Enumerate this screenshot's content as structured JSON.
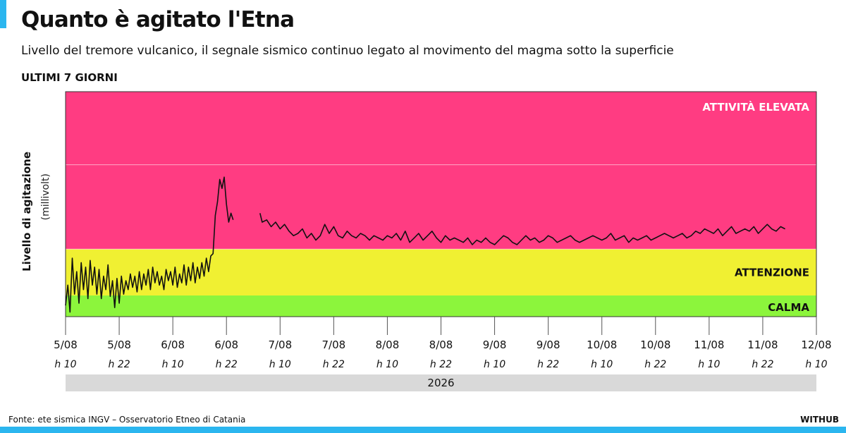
{
  "title": "Quanto è agitato l'Etna",
  "subtitle": "Livello del tremore vulcanico, il segnale sismico continuo legato al movimento del magma sotto la superficie",
  "period_label": "ULTIMI 7 GIORNI",
  "source": "Fonte: ete sismica INGV – Osservatorio Etneo di Catania",
  "brand": "WITHUB",
  "chart_data": {
    "type": "line",
    "title": "Quanto è agitato l'Etna",
    "ylabel": "Livello di agitazione",
    "yunit": "(millivolt)",
    "xlabel": "2026",
    "year": "2026",
    "x_ticks": [
      {
        "date": "5/08",
        "hour": "h 10"
      },
      {
        "date": "5/08",
        "hour": "h 22"
      },
      {
        "date": "6/08",
        "hour": "h 10"
      },
      {
        "date": "6/08",
        "hour": "h 22"
      },
      {
        "date": "7/08",
        "hour": "h 10"
      },
      {
        "date": "7/08",
        "hour": "h 22"
      },
      {
        "date": "8/08",
        "hour": "h 10"
      },
      {
        "date": "8/08",
        "hour": "h 22"
      },
      {
        "date": "9/08",
        "hour": "h 10"
      },
      {
        "date": "9/08",
        "hour": "h 22"
      },
      {
        "date": "10/08",
        "hour": "h 10"
      },
      {
        "date": "10/08",
        "hour": "h 22"
      },
      {
        "date": "11/08",
        "hour": "h 10"
      },
      {
        "date": "11/08",
        "hour": "h 22"
      },
      {
        "date": "12/08",
        "hour": "h 10"
      }
    ],
    "x_range_hours": [
      0,
      168
    ],
    "y_range": [
      0,
      100
    ],
    "zones": [
      {
        "name": "CALMA",
        "from": 0,
        "to": 9.4,
        "color": "#8cf53c"
      },
      {
        "name": "ATTENZIONE",
        "from": 9.4,
        "to": 30,
        "color": "#f0f032"
      },
      {
        "name": "ATTIVITÀ ELEVATA",
        "from": 30,
        "to": 100,
        "color": "#ff3c82"
      }
    ],
    "gridlines": [
      30,
      67.5
    ],
    "line_color": "#111111",
    "series": [
      {
        "segment": 1,
        "points": [
          [
            0,
            5
          ],
          [
            0.5,
            14
          ],
          [
            1,
            2
          ],
          [
            1.5,
            26
          ],
          [
            2,
            10
          ],
          [
            2.5,
            20
          ],
          [
            3,
            6
          ],
          [
            3.5,
            24
          ],
          [
            4,
            12
          ],
          [
            4.5,
            22
          ],
          [
            5,
            8
          ],
          [
            5.5,
            25
          ],
          [
            6,
            14
          ],
          [
            6.5,
            22
          ],
          [
            7,
            10
          ],
          [
            7.5,
            21
          ],
          [
            8,
            8
          ],
          [
            8.5,
            18
          ],
          [
            9,
            12
          ],
          [
            9.5,
            23
          ],
          [
            10,
            9
          ],
          [
            10.5,
            16
          ],
          [
            11,
            4
          ],
          [
            11.5,
            17
          ],
          [
            12,
            6
          ],
          [
            12.5,
            18
          ],
          [
            13,
            10
          ],
          [
            13.5,
            16
          ],
          [
            14,
            12
          ],
          [
            14.5,
            19
          ],
          [
            15,
            13
          ],
          [
            15.5,
            18
          ],
          [
            16,
            11
          ],
          [
            16.5,
            20
          ],
          [
            17,
            12
          ],
          [
            17.5,
            19
          ],
          [
            18,
            14
          ],
          [
            18.5,
            21
          ],
          [
            19,
            12
          ],
          [
            19.5,
            22
          ],
          [
            20,
            15
          ],
          [
            20.5,
            20
          ],
          [
            21,
            14
          ],
          [
            21.5,
            18
          ],
          [
            22,
            12
          ],
          [
            22.5,
            21
          ],
          [
            23,
            16
          ],
          [
            23.5,
            20
          ],
          [
            24,
            14
          ],
          [
            24.5,
            22
          ],
          [
            25,
            13
          ],
          [
            25.5,
            19
          ],
          [
            26,
            15
          ],
          [
            26.5,
            23
          ],
          [
            27,
            14
          ],
          [
            27.5,
            22
          ],
          [
            28,
            16
          ],
          [
            28.5,
            24
          ],
          [
            29,
            15
          ],
          [
            29.5,
            22
          ],
          [
            30,
            17
          ],
          [
            30.5,
            24
          ],
          [
            31,
            18
          ],
          [
            31.5,
            26
          ],
          [
            32,
            20
          ],
          [
            32.5,
            27
          ],
          [
            33,
            28
          ],
          [
            33.5,
            45
          ],
          [
            34,
            51
          ],
          [
            34.5,
            61
          ],
          [
            35,
            57
          ],
          [
            35.5,
            62
          ],
          [
            36,
            50
          ],
          [
            36.5,
            42
          ],
          [
            37,
            46
          ],
          [
            37.5,
            43
          ]
        ]
      },
      {
        "segment": 2,
        "points": [
          [
            43.5,
            46
          ],
          [
            44,
            42
          ],
          [
            45,
            43
          ],
          [
            46,
            40
          ],
          [
            47,
            42
          ],
          [
            48,
            39
          ],
          [
            49,
            41
          ],
          [
            50,
            38
          ],
          [
            51,
            36
          ],
          [
            52,
            37
          ],
          [
            53,
            39
          ],
          [
            54,
            35
          ],
          [
            55,
            37
          ],
          [
            56,
            34
          ],
          [
            57,
            36
          ],
          [
            58,
            41
          ],
          [
            59,
            37
          ],
          [
            60,
            40
          ],
          [
            61,
            36
          ],
          [
            62,
            35
          ],
          [
            63,
            38
          ],
          [
            64,
            36
          ],
          [
            65,
            35
          ],
          [
            66,
            37
          ],
          [
            67,
            36
          ],
          [
            68,
            34
          ],
          [
            69,
            36
          ],
          [
            70,
            35
          ],
          [
            71,
            34
          ],
          [
            72,
            36
          ],
          [
            73,
            35
          ],
          [
            74,
            37
          ],
          [
            75,
            34
          ],
          [
            76,
            38
          ],
          [
            77,
            33
          ],
          [
            78,
            35
          ],
          [
            79,
            37
          ],
          [
            80,
            34
          ],
          [
            81,
            36
          ],
          [
            82,
            38
          ],
          [
            83,
            35
          ],
          [
            84,
            33
          ],
          [
            85,
            36
          ],
          [
            86,
            34
          ],
          [
            87,
            35
          ],
          [
            88,
            34
          ],
          [
            89,
            33
          ],
          [
            90,
            35
          ],
          [
            91,
            32
          ],
          [
            92,
            34
          ],
          [
            93,
            33
          ],
          [
            94,
            35
          ],
          [
            95,
            33
          ],
          [
            96,
            32
          ],
          [
            97,
            34
          ],
          [
            98,
            36
          ],
          [
            99,
            35
          ],
          [
            100,
            33
          ],
          [
            101,
            32
          ],
          [
            102,
            34
          ],
          [
            103,
            36
          ],
          [
            104,
            34
          ],
          [
            105,
            35
          ],
          [
            106,
            33
          ],
          [
            107,
            34
          ],
          [
            108,
            36
          ],
          [
            109,
            35
          ],
          [
            110,
            33
          ],
          [
            111,
            34
          ],
          [
            112,
            35
          ],
          [
            113,
            36
          ],
          [
            114,
            34
          ],
          [
            115,
            33
          ],
          [
            116,
            34
          ],
          [
            117,
            35
          ],
          [
            118,
            36
          ],
          [
            119,
            35
          ],
          [
            120,
            34
          ],
          [
            121,
            35
          ],
          [
            122,
            37
          ],
          [
            123,
            34
          ],
          [
            124,
            35
          ],
          [
            125,
            36
          ],
          [
            126,
            33
          ],
          [
            127,
            35
          ],
          [
            128,
            34
          ],
          [
            129,
            35
          ],
          [
            130,
            36
          ],
          [
            131,
            34
          ],
          [
            132,
            35
          ],
          [
            133,
            36
          ],
          [
            134,
            37
          ],
          [
            135,
            36
          ],
          [
            136,
            35
          ],
          [
            137,
            36
          ],
          [
            138,
            37
          ],
          [
            139,
            35
          ],
          [
            140,
            36
          ],
          [
            141,
            38
          ],
          [
            142,
            37
          ],
          [
            143,
            39
          ],
          [
            144,
            38
          ],
          [
            145,
            37
          ],
          [
            146,
            39
          ],
          [
            147,
            36
          ],
          [
            148,
            38
          ],
          [
            149,
            40
          ],
          [
            150,
            37
          ],
          [
            151,
            38
          ],
          [
            152,
            39
          ],
          [
            153,
            38
          ],
          [
            154,
            40
          ],
          [
            155,
            37
          ],
          [
            156,
            39
          ],
          [
            157,
            41
          ],
          [
            158,
            39
          ],
          [
            159,
            38
          ],
          [
            160,
            40
          ],
          [
            161,
            39
          ]
        ]
      }
    ]
  }
}
